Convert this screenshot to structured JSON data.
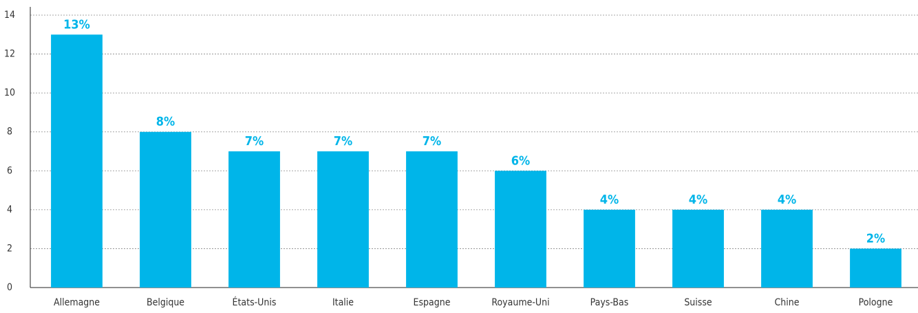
{
  "chart_data": {
    "type": "bar",
    "categories": [
      "Allemagne",
      "Belgique",
      "États-Unis",
      "Italie",
      "Espagne",
      "Royaume-Uni",
      "Pays-Bas",
      "Suisse",
      "Chine",
      "Pologne"
    ],
    "values": [
      13,
      8,
      7,
      7,
      7,
      6,
      4,
      4,
      4,
      2
    ],
    "value_labels": [
      "13%",
      "8%",
      "7%",
      "7%",
      "7%",
      "6%",
      "4%",
      "4%",
      "4%",
      "2%"
    ],
    "color": "#00b5e9",
    "ylim": [
      0,
      14
    ],
    "yticks": [
      0,
      2,
      4,
      6,
      8,
      10,
      12,
      14
    ],
    "grid": true
  }
}
